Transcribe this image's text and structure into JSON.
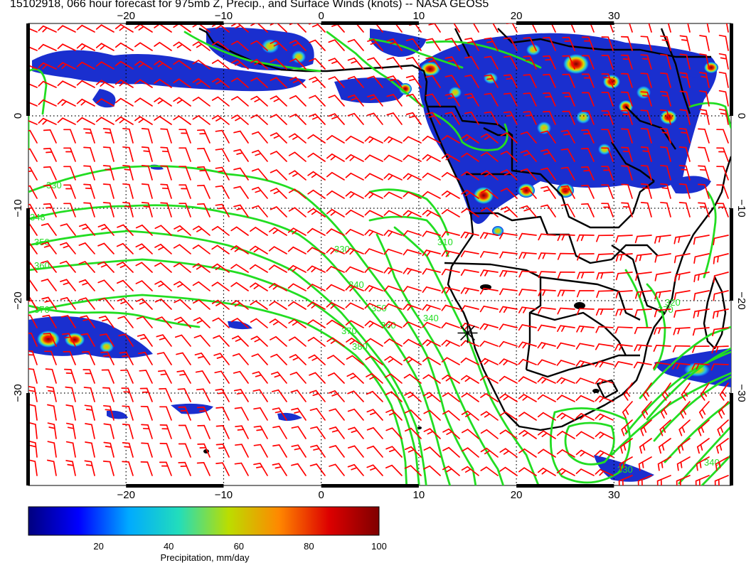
{
  "title": "15102918, 066 hour forecast for 975mb Z, Precip., and Surface Winds (knots) -- NASA GEOS5",
  "map": {
    "lon_range": [
      -30,
      42
    ],
    "lat_range": [
      -40,
      10
    ],
    "lon_ticks": [
      -20,
      -10,
      0,
      10,
      20,
      30
    ],
    "lat_ticks": [
      0,
      -10,
      -20,
      -30
    ],
    "lon_tick_labels": [
      "−20",
      "−10",
      "0",
      "10",
      "20",
      "30"
    ],
    "lat_tick_labels": [
      "0",
      "−10",
      "−20",
      "−30"
    ],
    "contour_labels": [
      "330",
      "348",
      "350",
      "360",
      "370",
      "330",
      "340",
      "350",
      "360",
      "370",
      "380",
      "340",
      "310",
      "370",
      "320",
      "330",
      "340"
    ],
    "marker": {
      "name": "asterisk-marker",
      "lon": 15,
      "lat": -23.5
    },
    "colors": {
      "barbs": "#ff0000",
      "contours": "#22dd22",
      "land_outline": "#000000",
      "grid": "#000000"
    }
  },
  "colorbar": {
    "ticks": [
      20,
      40,
      60,
      80,
      100
    ],
    "tick_labels": [
      "20",
      "40",
      "60",
      "80",
      "100"
    ],
    "range": [
      0,
      100
    ],
    "label": "Precipitation, mm/day",
    "stops": [
      "#00007f",
      "#0000ff",
      "#00aaff",
      "#22ddbb",
      "#bbdd00",
      "#ff8800",
      "#dd0000",
      "#7f0000"
    ]
  }
}
